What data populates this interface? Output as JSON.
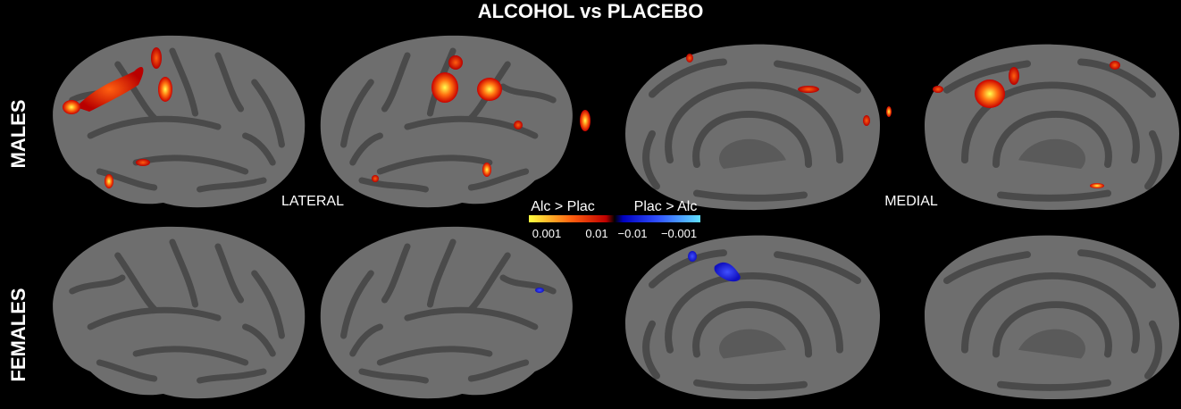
{
  "header": {
    "title": "ALCOHOL vs PLACEBO"
  },
  "rows": [
    "MALES",
    "FEMALES"
  ],
  "views": [
    "LATERAL",
    "MEDIAL"
  ],
  "colorbar": {
    "left_label": "Alc > Plac",
    "right_label": "Plac > Alc",
    "ticks": [
      "0.001",
      "0.01",
      "−0.01",
      "−0.001"
    ]
  }
}
